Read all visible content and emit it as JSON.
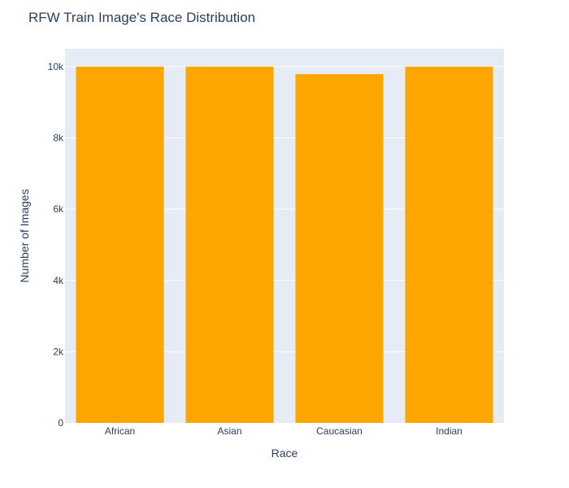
{
  "chart_data": {
    "type": "bar",
    "title": "RFW Train Image's Race Distribution",
    "xlabel": "Race",
    "ylabel": "Number of Images",
    "categories": [
      "African",
      "Asian",
      "Caucasian",
      "Indian"
    ],
    "values": [
      10000,
      10000,
      9790,
      10000
    ],
    "ylim": [
      0,
      10500
    ],
    "yticks": [
      0,
      2000,
      4000,
      6000,
      8000,
      10000
    ],
    "ytick_labels": [
      "0",
      "2k",
      "4k",
      "6k",
      "8k",
      "10k"
    ],
    "grid": true,
    "legend": "none",
    "colors": {
      "bar": "#FFA500",
      "plot_background": "#E5ECF6",
      "gridline": "#ffffff",
      "text": "#2a3f5f"
    }
  }
}
